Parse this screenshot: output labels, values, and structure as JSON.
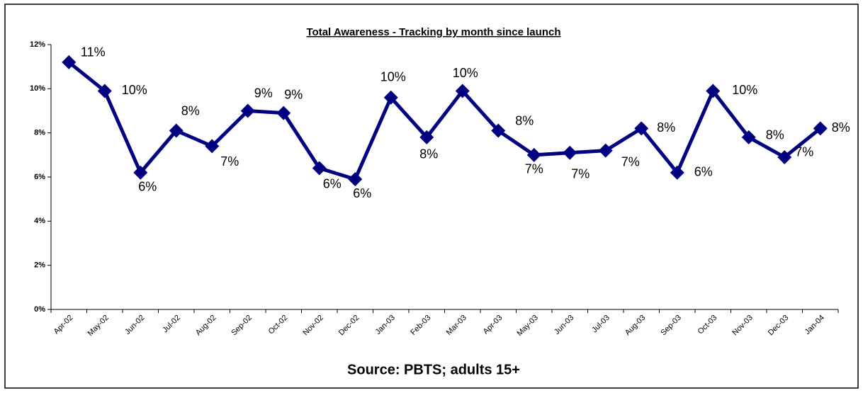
{
  "chart_data": {
    "type": "line",
    "title": "Total Awareness - Tracking by month since launch",
    "source": "Source: PBTS; adults 15+",
    "categories": [
      "Apr-02",
      "May-02",
      "Jun-02",
      "Jul-02",
      "Aug-02",
      "Sep-02",
      "Oct-02",
      "Nov-02",
      "Dec-02",
      "Jan-03",
      "Feb-03",
      "Mar-03",
      "Apr-03",
      "May-03",
      "Jun-03",
      "Jul-03",
      "Aug-03",
      "Sep-03",
      "Oct-03",
      "Nov-03",
      "Dec-03",
      "Jan-04"
    ],
    "series": [
      {
        "color": "#000080",
        "values": [
          11.2,
          9.9,
          6.2,
          8.1,
          7.4,
          9.0,
          8.9,
          6.4,
          5.9,
          9.6,
          7.8,
          9.9,
          8.1,
          7.0,
          7.1,
          7.2,
          8.2,
          6.2,
          9.9,
          7.8,
          6.9,
          8.2
        ],
        "value_labels": [
          "11%",
          "10%",
          "6%",
          "8%",
          "7%",
          "9%",
          "9%",
          "6%",
          "6%",
          "10%",
          "8%",
          "10%",
          "8%",
          "7%",
          "7%",
          "7%",
          "8%",
          "6%",
          "10%",
          "8%",
          "7%",
          "8%"
        ]
      }
    ],
    "ylim": [
      0,
      12
    ],
    "yticks": [
      {
        "value": 0,
        "label": "0%"
      },
      {
        "value": 2,
        "label": "2%"
      },
      {
        "value": 4,
        "label": "4%"
      },
      {
        "value": 6,
        "label": "6%"
      },
      {
        "value": 8,
        "label": "8%"
      },
      {
        "value": 10,
        "label": "10%"
      },
      {
        "value": 12,
        "label": "12%"
      }
    ]
  }
}
